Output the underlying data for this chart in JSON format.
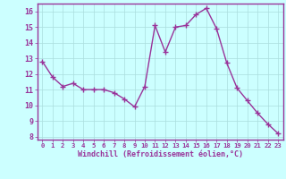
{
  "x": [
    0,
    1,
    2,
    3,
    4,
    5,
    6,
    7,
    8,
    9,
    10,
    11,
    12,
    13,
    14,
    15,
    16,
    17,
    18,
    19,
    20,
    21,
    22,
    23
  ],
  "y": [
    12.8,
    11.8,
    11.2,
    11.4,
    11.0,
    11.0,
    11.0,
    10.8,
    10.4,
    9.9,
    11.2,
    15.1,
    13.4,
    15.0,
    15.1,
    15.8,
    16.2,
    14.9,
    12.7,
    11.1,
    10.3,
    9.5,
    8.8,
    8.2
  ],
  "line_color": "#993399",
  "marker": "+",
  "marker_size": 4,
  "bg_color": "#ccffff",
  "grid_color": "#aadddd",
  "xlabel": "Windchill (Refroidissement éolien,°C)",
  "xlabel_color": "#993399",
  "tick_color": "#993399",
  "axis_line_color": "#993399",
  "ylim": [
    7.8,
    16.5
  ],
  "yticks": [
    8,
    9,
    10,
    11,
    12,
    13,
    14,
    15,
    16
  ],
  "xlim": [
    -0.5,
    23.5
  ],
  "line_style": "-",
  "line_width": 1.0
}
